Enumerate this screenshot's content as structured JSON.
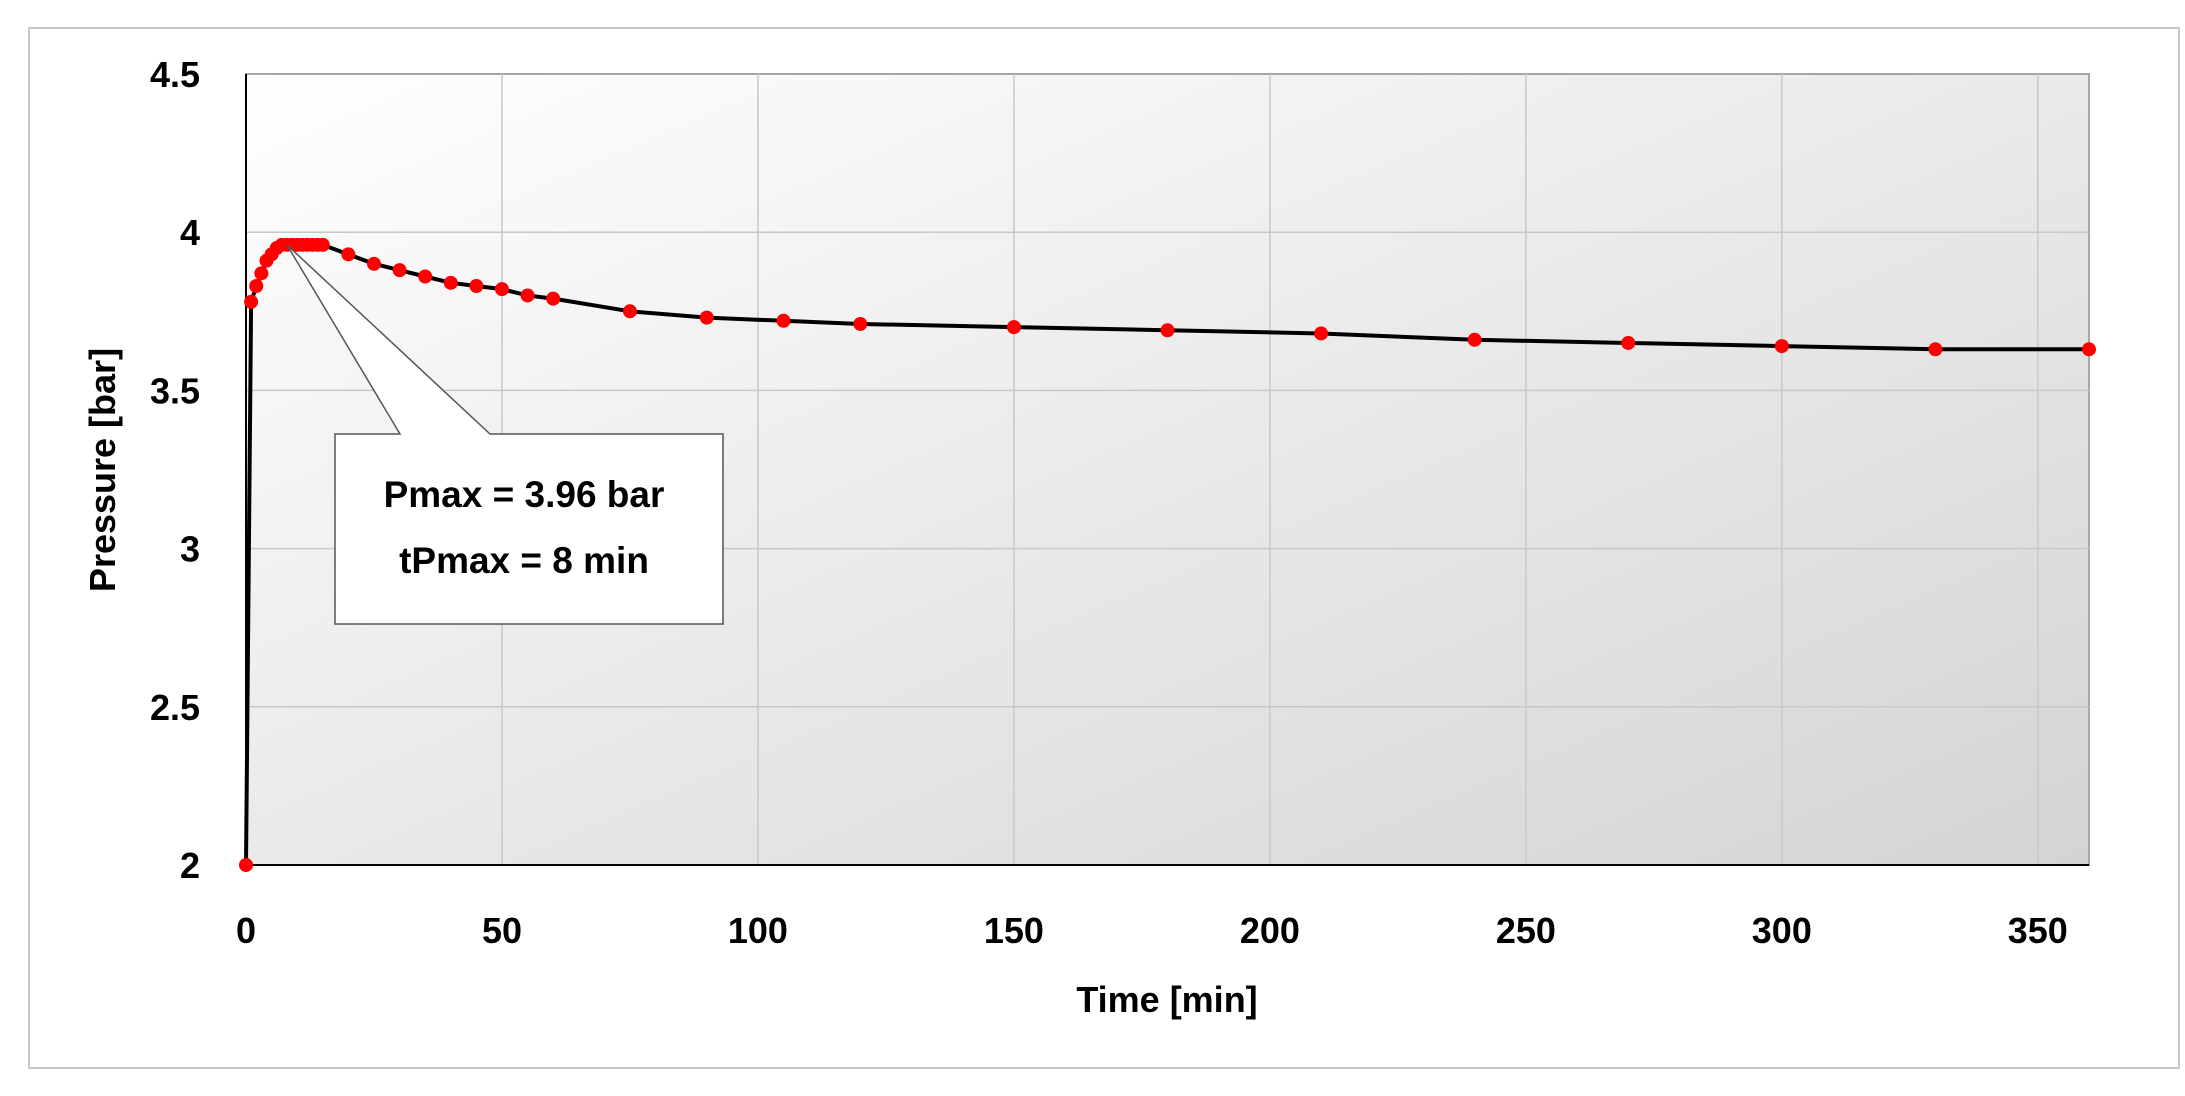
{
  "chart_data": {
    "type": "line",
    "xlabel": "Time [min]",
    "ylabel": "Pressure [bar]",
    "xlim": [
      0,
      360
    ],
    "ylim": [
      2,
      4.5
    ],
    "x_ticks": [
      0,
      50,
      100,
      150,
      200,
      250,
      300,
      350
    ],
    "y_ticks": [
      2,
      2.5,
      3,
      3.5,
      4,
      4.5
    ],
    "x_tick_labels": [
      "0",
      "50",
      "100",
      "150",
      "200",
      "250",
      "300",
      "350"
    ],
    "y_tick_labels": [
      "2",
      "2.5",
      "3",
      "3.5",
      "4",
      "4.5"
    ],
    "grid": true,
    "series": [
      {
        "line_color": "#000000",
        "marker_color": "#ff0000",
        "x": [
          0,
          1,
          2,
          3,
          4,
          5,
          6,
          7,
          8,
          9,
          10,
          11,
          12,
          13,
          14,
          15,
          20,
          25,
          30,
          35,
          40,
          45,
          50,
          55,
          60,
          75,
          90,
          105,
          120,
          150,
          180,
          210,
          240,
          270,
          300,
          330,
          360
        ],
        "y": [
          2.0,
          3.78,
          3.83,
          3.87,
          3.91,
          3.93,
          3.95,
          3.96,
          3.96,
          3.96,
          3.96,
          3.96,
          3.96,
          3.96,
          3.96,
          3.96,
          3.93,
          3.9,
          3.88,
          3.86,
          3.84,
          3.83,
          3.82,
          3.8,
          3.79,
          3.75,
          3.73,
          3.72,
          3.71,
          3.7,
          3.69,
          3.68,
          3.66,
          3.65,
          3.64,
          3.63,
          3.63
        ]
      }
    ],
    "annotation": {
      "lines": [
        "Pmax = 3.96 bar",
        "tPmax = 8 min"
      ],
      "points_to": [
        8,
        3.96
      ]
    }
  }
}
